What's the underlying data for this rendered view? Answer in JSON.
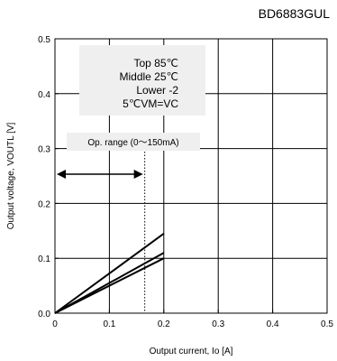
{
  "header": {
    "part_number": "BD6883GUL"
  },
  "chart_data": {
    "type": "line",
    "xlabel": "Output current, Io [A]",
    "ylabel": "Output voltage, VOUTL [V]",
    "xlim": [
      0,
      0.5
    ],
    "ylim": [
      0,
      0.5
    ],
    "xticks": [
      "0",
      "0.1",
      "0.2",
      "0.3",
      "0.4",
      "0.5"
    ],
    "yticks": [
      "0.0",
      "0.1",
      "0.2",
      "0.3",
      "0.4",
      "0.5"
    ],
    "grid": true,
    "series": [
      {
        "x": [
          0,
          0.2
        ],
        "y": [
          0,
          0.145
        ]
      },
      {
        "x": [
          0,
          0.2
        ],
        "y": [
          0,
          0.11
        ]
      },
      {
        "x": [
          0,
          0.2
        ],
        "y": [
          0,
          0.1
        ]
      }
    ],
    "legend_lines": [
      "Top 85℃",
      "Middle  25℃",
      "Lower  -2",
      "5℃VM=VC"
    ],
    "annotation": {
      "label": "Op. range (0～150mA)",
      "range_end_x": 0.165
    }
  }
}
